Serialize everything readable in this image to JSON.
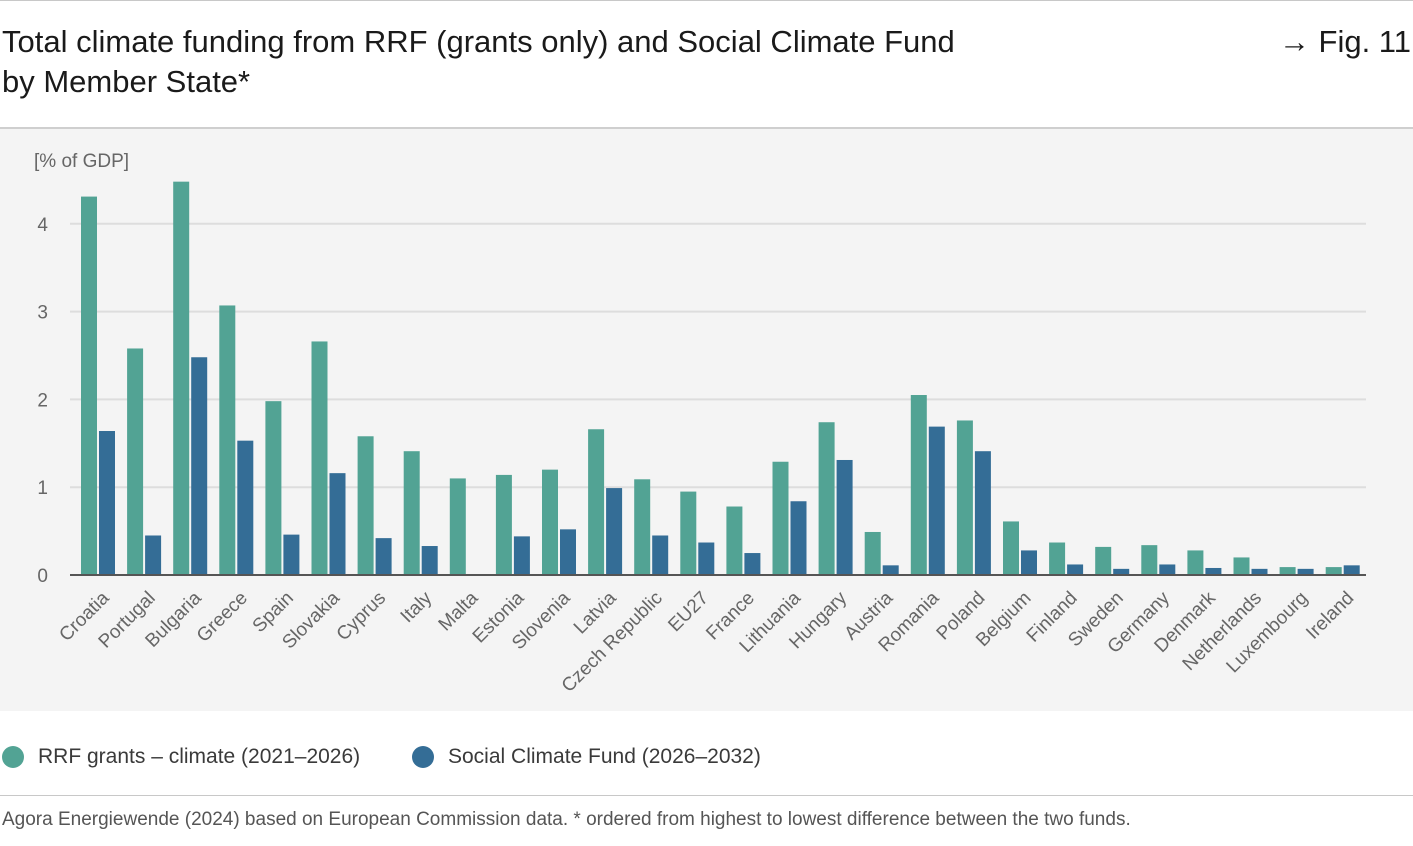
{
  "header": {
    "title_line1": "Total climate funding from RRF (grants only) and Social Climate Fund",
    "title_line2": "by Member State*",
    "figure_ref": "→ Fig. 11"
  },
  "source": "Agora Energiewende (2024) based on European Commission data. * ordered from highest to lowest difference between the two funds.",
  "colors": {
    "rrf": "#52a394",
    "scf": "#346d96",
    "grid": "#dddddd",
    "axis": "#555555"
  },
  "chart_data": {
    "type": "bar",
    "title": "Total climate funding from RRF (grants only) and Social Climate Fund by Member State*",
    "ylabel": "[% of GDP]",
    "xlabel": "",
    "ylim": [
      0,
      4.6
    ],
    "yticks": [
      0,
      1,
      2,
      3,
      4
    ],
    "grid": true,
    "legend": "bottom-left",
    "categories": [
      "Croatia",
      "Portugal",
      "Bulgaria",
      "Greece",
      "Spain",
      "Slovakia",
      "Cyprus",
      "Italy",
      "Malta",
      "Estonia",
      "Slovenia",
      "Latvia",
      "Czech Republic",
      "EU27",
      "France",
      "Lithuania",
      "Hungary",
      "Austria",
      "Romania",
      "Poland",
      "Belgium",
      "Finland",
      "Sweden",
      "Germany",
      "Denmark",
      "Netherlands",
      "Luxembourg",
      "Ireland"
    ],
    "series": [
      {
        "name": "RRF grants – climate (2021–2026)",
        "values": [
          4.31,
          2.58,
          4.48,
          3.07,
          1.98,
          2.66,
          1.58,
          1.41,
          1.1,
          1.14,
          1.2,
          1.66,
          1.09,
          0.95,
          0.78,
          1.29,
          1.74,
          0.49,
          2.05,
          1.76,
          0.61,
          0.37,
          0.32,
          0.34,
          0.28,
          0.2,
          0.09,
          0.09
        ]
      },
      {
        "name": "Social Climate Fund (2026–2032)",
        "values": [
          1.64,
          0.45,
          2.48,
          1.53,
          0.46,
          1.16,
          0.42,
          0.33,
          0.0,
          0.44,
          0.52,
          0.99,
          0.45,
          0.37,
          0.25,
          0.84,
          1.31,
          0.11,
          1.69,
          1.41,
          0.28,
          0.12,
          0.07,
          0.12,
          0.08,
          0.07,
          0.07,
          0.11
        ]
      }
    ]
  }
}
